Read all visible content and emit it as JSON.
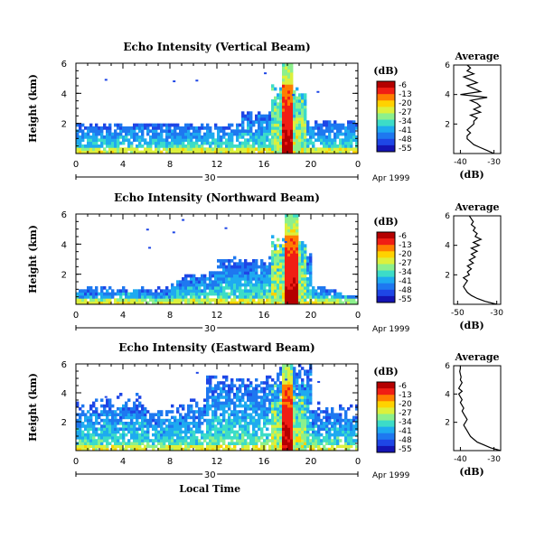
{
  "figure": {
    "date_label": "Apr 1999",
    "x_label": "Local Time",
    "day_label": "30"
  },
  "colorbar": {
    "unit": "(dB)",
    "ticks": [
      "-6",
      "-13",
      "-20",
      "-27",
      "-34",
      "-41",
      "-48",
      "-55"
    ],
    "colors": [
      "#b40000",
      "#f01e14",
      "#ff7d00",
      "#ffd200",
      "#dcf03c",
      "#8cf08c",
      "#3cdcc8",
      "#1eaaf0",
      "#1e78f0",
      "#1e46e6",
      "#1414b4"
    ]
  },
  "chart_data": [
    {
      "type": "heatmap",
      "title": "Echo Intensity (Vertical Beam)",
      "ylabel": "Height (km)",
      "xlabel": "",
      "x_range": [
        0,
        24
      ],
      "x_ticks": [
        "0",
        "4",
        "8",
        "12",
        "16",
        "20",
        "0"
      ],
      "y_range": [
        0,
        6
      ],
      "y_ticks": [
        "2",
        "4",
        "6"
      ],
      "color_range_db": [
        -55,
        -6
      ],
      "description_values": [
        {
          "time_h": 18.0,
          "top_km": 5.9,
          "peak_db": -6
        },
        {
          "time_h": 6.0,
          "top_km": 1.9,
          "peak_db": -41
        },
        {
          "time_h": 14.5,
          "top_km": 3.5,
          "peak_db": -27
        }
      ],
      "average_profile": {
        "title": "Average",
        "xlabel": "(dB)",
        "x_ticks": [
          "-40",
          "-30"
        ],
        "x_range": [
          -42,
          -28
        ],
        "y_range": [
          0,
          6
        ],
        "y_ticks": [
          "2",
          "4",
          "6"
        ],
        "height_km": [
          0.0,
          0.2,
          0.4,
          0.6,
          0.8,
          1.0,
          1.2,
          1.4,
          1.6,
          1.8,
          2.0,
          2.2,
          2.4,
          2.6,
          2.8,
          3.0,
          3.2,
          3.4,
          3.6,
          3.8,
          4.0,
          4.2,
          4.4,
          4.6,
          4.8,
          5.0,
          5.2,
          5.4,
          5.6,
          5.8,
          6.0
        ],
        "db": [
          -30,
          -32,
          -34,
          -36,
          -37,
          -38,
          -38,
          -37,
          -38,
          -37,
          -36,
          -36,
          -35,
          -37,
          -34,
          -36,
          -34,
          -35,
          -37,
          -32,
          -40,
          -34,
          -36,
          -38,
          -35,
          -37,
          -39,
          -36,
          -38,
          -37,
          -38
        ]
      }
    },
    {
      "type": "heatmap",
      "title": "Echo Intensity (Northward Beam)",
      "ylabel": "Height (km)",
      "xlabel": "",
      "x_range": [
        0,
        24
      ],
      "x_ticks": [
        "0",
        "4",
        "8",
        "12",
        "16",
        "20",
        "0"
      ],
      "y_range": [
        0,
        6
      ],
      "y_ticks": [
        "2",
        "4",
        "6"
      ],
      "color_range_db": [
        -55,
        -6
      ],
      "description_values": [
        {
          "time_h": 18.3,
          "top_km": 5.9,
          "peak_db": -6
        },
        {
          "time_h": 6.0,
          "top_km": 1.0,
          "peak_db": -41
        },
        {
          "time_h": 14.0,
          "top_km": 3.0,
          "peak_db": -34
        }
      ],
      "average_profile": {
        "title": "Average",
        "xlabel": "(dB)",
        "x_ticks": [
          "-50",
          "-30"
        ],
        "x_range": [
          -52,
          -28
        ],
        "y_range": [
          0,
          6
        ],
        "y_ticks": [
          "2",
          "4",
          "6"
        ],
        "height_km": [
          0.0,
          0.2,
          0.4,
          0.6,
          0.8,
          1.0,
          1.2,
          1.4,
          1.6,
          1.8,
          2.0,
          2.2,
          2.4,
          2.6,
          2.8,
          3.0,
          3.2,
          3.4,
          3.6,
          3.8,
          4.0,
          4.2,
          4.4,
          4.6,
          4.8,
          5.0,
          5.2,
          5.4,
          5.6,
          5.8,
          6.0
        ],
        "db": [
          -30,
          -36,
          -40,
          -43,
          -45,
          -46,
          -47,
          -46,
          -45,
          -47,
          -44,
          -45,
          -43,
          -45,
          -42,
          -44,
          -41,
          -43,
          -40,
          -43,
          -39,
          -42,
          -38,
          -41,
          -40,
          -42,
          -41,
          -43,
          -42,
          -43,
          -44
        ]
      }
    },
    {
      "type": "heatmap",
      "title": "Echo Intensity (Eastward Beam)",
      "ylabel": "Height (km)",
      "xlabel": "Local Time",
      "x_range": [
        0,
        24
      ],
      "x_ticks": [
        "0",
        "4",
        "8",
        "12",
        "16",
        "20",
        "0"
      ],
      "y_range": [
        0,
        6
      ],
      "y_ticks": [
        "2",
        "4",
        "6"
      ],
      "color_range_db": [
        -55,
        -6
      ],
      "description_values": [
        {
          "time_h": 18.0,
          "top_km": 5.9,
          "peak_db": -6
        },
        {
          "time_h": 4.0,
          "top_km": 3.0,
          "peak_db": -34
        },
        {
          "time_h": 14.0,
          "top_km": 5.0,
          "peak_db": -34
        }
      ],
      "average_profile": {
        "title": "Average",
        "xlabel": "(dB)",
        "x_ticks": [
          "-40",
          "-30"
        ],
        "x_range": [
          -42,
          -28
        ],
        "y_range": [
          0,
          6
        ],
        "y_ticks": [
          "2",
          "4",
          "6"
        ],
        "height_km": [
          0.0,
          0.2,
          0.4,
          0.6,
          0.8,
          1.0,
          1.2,
          1.4,
          1.6,
          1.8,
          2.0,
          2.2,
          2.4,
          2.6,
          2.8,
          3.0,
          3.2,
          3.4,
          3.6,
          3.8,
          4.0,
          4.2,
          4.4,
          4.6,
          4.8,
          5.0,
          5.2,
          5.4,
          5.6,
          5.8,
          6.0
        ],
        "db": [
          -28,
          -31,
          -33,
          -35,
          -36,
          -37,
          -37.5,
          -38,
          -38.5,
          -39,
          -38.5,
          -38,
          -38.5,
          -39,
          -39.5,
          -39,
          -39.5,
          -40,
          -39.5,
          -40,
          -40.5,
          -39.5,
          -40.5,
          -40,
          -39.5,
          -40,
          -39.8,
          -40,
          -40.2,
          -40,
          -40
        ]
      }
    }
  ]
}
